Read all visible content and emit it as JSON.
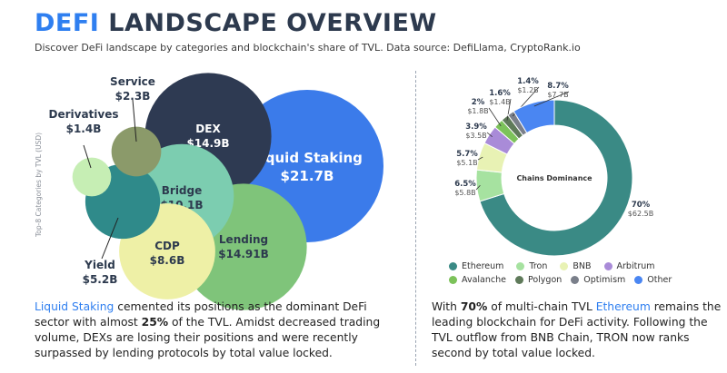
{
  "header": {
    "title_accent": "DEFI",
    "title_rest": "LANDSCAPE OVERVIEW",
    "subtitle": "Discover DeFi landscape by categories and blockchain's share of TVL. Data source: DefiLlama, CryptoRank.io"
  },
  "chart_data": [
    {
      "type": "bubble",
      "ylabel": "Top-8 Categories by TVL (USD)",
      "categories": [
        "Liquid Staking",
        "DEX",
        "Lending",
        "Bridge",
        "CDP",
        "Yield",
        "Service",
        "Derivatives"
      ],
      "values": [
        21.7,
        14.9,
        14.91,
        10.1,
        8.6,
        5.2,
        2.3,
        1.4
      ],
      "value_labels": [
        "$21.7B",
        "$14.9B",
        "$14.91B",
        "$10.1B",
        "$8.6B",
        "$5.2B",
        "$2.3B",
        "$1.4B"
      ],
      "colors": [
        "#3b7bea",
        "#2e3a52",
        "#7fc47a",
        "#7ccdb0",
        "#eef0a6",
        "#2f8a8a",
        "#8b9a6a",
        "#c6eeb4"
      ]
    },
    {
      "type": "pie",
      "center_label": "Chains Dominance",
      "categories": [
        "Ethereum",
        "Tron",
        "BNB",
        "Arbitrum",
        "Avalanche",
        "Polygon",
        "Optimism",
        "Other"
      ],
      "percent_labels": [
        "70%",
        "6.5%",
        "5.7%",
        "3.9%",
        "2%",
        "1.6%",
        "1.4%",
        "8.7%"
      ],
      "values": [
        70,
        6.5,
        5.7,
        3.9,
        2,
        1.6,
        1.4,
        8.7
      ],
      "value_labels": [
        "$62.5B",
        "$5.8B",
        "$5.1B",
        "$3.5B",
        "$1.8B",
        "$1.4B",
        "$1.2B",
        "$7.7B"
      ],
      "colors": [
        "#3a8a85",
        "#a6e2a0",
        "#e8f2b4",
        "#a98bd8",
        "#7cc25a",
        "#5f7a5a",
        "#7a7f8a",
        "#4a86f2"
      ]
    }
  ],
  "left_text": {
    "hl": "Liquid Staking",
    "p1": " cemented its positions as the dominant DeFi sector with almost ",
    "bold": "25%",
    "p2": " of the TVL. Amidst decreased trading volume, DEXs are losing their positions and were recently surpassed by lending protocols by total value locked."
  },
  "right_text": {
    "p0": "With ",
    "bold": "70%",
    "p1": " of multi-chain TVL ",
    "hl": "Ethereum",
    "p2": " remains the leading blockchain for DeFi activity. Following the TVL outflow from BNB Chain, TRON now ranks second by total value locked."
  }
}
